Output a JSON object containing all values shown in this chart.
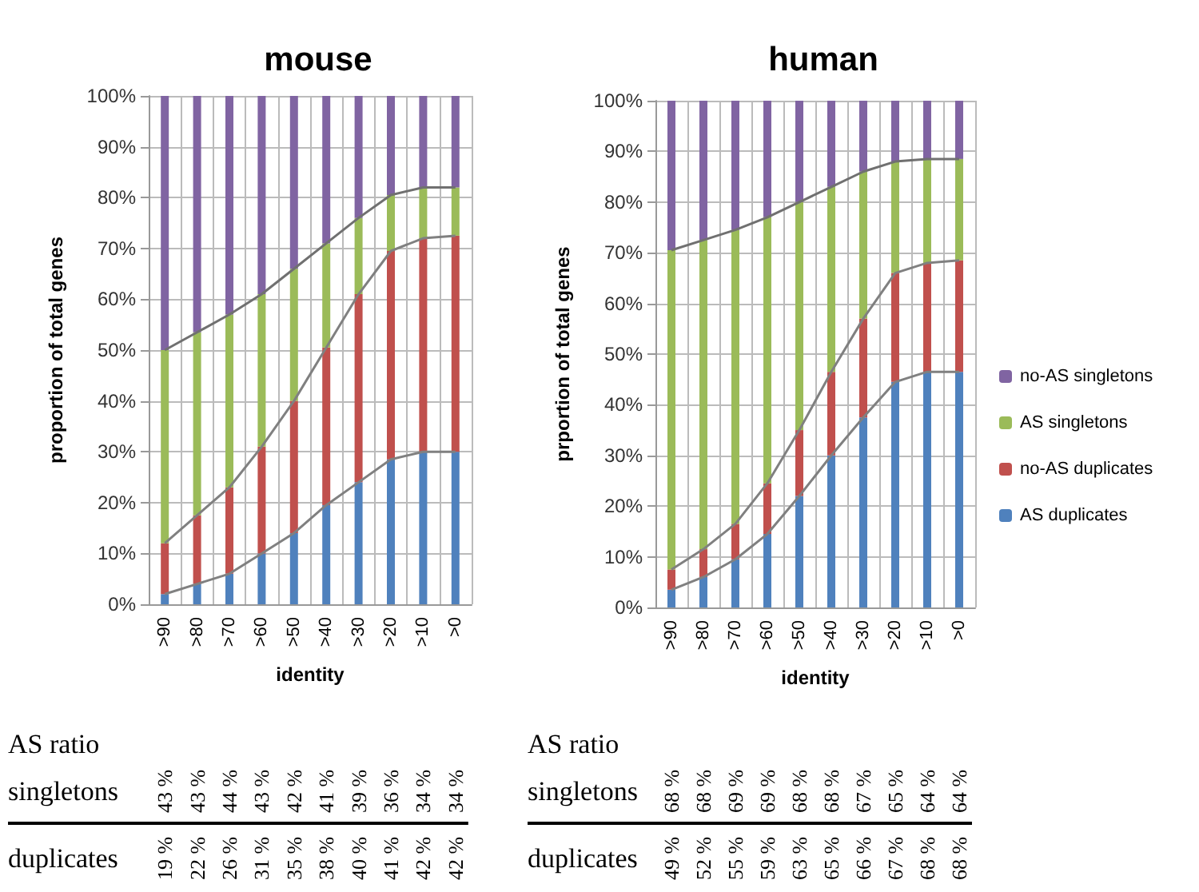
{
  "chart_data": [
    {
      "type": "bar",
      "title": "mouse",
      "xlabel": "identity",
      "ylabel": "proportion of total genes",
      "stacked": true,
      "grid": true,
      "legend": false,
      "categories": [
        ">90",
        ">80",
        ">70",
        ">60",
        ">50",
        ">40",
        ">30",
        ">20",
        ">10",
        ">0"
      ],
      "ylim": [
        0,
        100
      ],
      "yticks": [
        {
          "value": 0,
          "label": "0%"
        },
        {
          "value": 10,
          "label": "10%"
        },
        {
          "value": 20,
          "label": "20%"
        },
        {
          "value": 30,
          "label": "30%"
        },
        {
          "value": 40,
          "label": "40%"
        },
        {
          "value": 50,
          "label": "50%"
        },
        {
          "value": 60,
          "label": "60%"
        },
        {
          "value": 70,
          "label": "70%"
        },
        {
          "value": 80,
          "label": "80%"
        },
        {
          "value": 90,
          "label": "90%"
        },
        {
          "value": 100,
          "label": "100%"
        }
      ],
      "series": [
        {
          "color": "#4f81bd",
          "values": [
            2,
            4,
            6,
            10,
            14,
            19.5,
            24,
            28.5,
            30,
            30
          ]
        },
        {
          "color": "#c0504d",
          "values": [
            10,
            13.5,
            17,
            21,
            26,
            31,
            37,
            41,
            42,
            42.5
          ]
        },
        {
          "color": "#9bbb59",
          "values": [
            38,
            36,
            34,
            30,
            26,
            20.5,
            15,
            11,
            10,
            9.5
          ]
        },
        {
          "color": "#8064a2",
          "values": [
            50,
            46.5,
            43,
            39,
            34,
            29,
            24,
            19.5,
            18,
            18
          ]
        },
        {
          "type": "line",
          "color": "#808080",
          "values": [
            2,
            4,
            6,
            10,
            14,
            19.5,
            24,
            28.5,
            30,
            30
          ]
        },
        {
          "type": "line",
          "color": "#808080",
          "values": [
            12,
            17.5,
            23,
            31,
            40,
            50.5,
            61,
            69.5,
            72,
            72.5
          ]
        },
        {
          "type": "line",
          "color": "#707070",
          "values": [
            50,
            53.5,
            57,
            61,
            66,
            71,
            76,
            80.5,
            82,
            82
          ]
        }
      ],
      "annotations": [
        "AS ratio",
        "singletons",
        "43 %",
        "43 %",
        "44 %",
        "43 %",
        "42 %",
        "41 %",
        "39 %",
        "36 %",
        "34 %",
        "34 %",
        "duplicates",
        "19 %",
        "22 %",
        "26 %",
        "31 %",
        "35 %",
        "38 %",
        "40 %",
        "41 %",
        "42 %",
        "42 %"
      ]
    },
    {
      "type": "bar",
      "title": "human",
      "xlabel": "identity",
      "ylabel": "prportion of total genes",
      "stacked": true,
      "grid": true,
      "legend": "right",
      "categories": [
        ">90",
        ">80",
        ">70",
        ">60",
        ">50",
        ">40",
        ">30",
        ">20",
        ">10",
        ">0"
      ],
      "ylim": [
        0,
        100
      ],
      "yticks": [
        {
          "value": 0,
          "label": "0%"
        },
        {
          "value": 10,
          "label": "10%"
        },
        {
          "value": 20,
          "label": "20%"
        },
        {
          "value": 30,
          "label": "30%"
        },
        {
          "value": 40,
          "label": "40%"
        },
        {
          "value": 50,
          "label": "50%"
        },
        {
          "value": 60,
          "label": "60%"
        },
        {
          "value": 70,
          "label": "70%"
        },
        {
          "value": 80,
          "label": "80%"
        },
        {
          "value": 90,
          "label": "90%"
        },
        {
          "value": 100,
          "label": "100%"
        }
      ],
      "series": [
        {
          "name": "AS duplicates",
          "color": "#4f81bd",
          "values": [
            3.5,
            6,
            9.5,
            14.5,
            22,
            30,
            37.5,
            44.5,
            46.5,
            46.5
          ]
        },
        {
          "name": "no-AS duplicates",
          "color": "#c0504d",
          "values": [
            4,
            5.5,
            7,
            10,
            13,
            16.5,
            19.5,
            21.5,
            21.5,
            22
          ]
        },
        {
          "name": "AS singletons",
          "color": "#9bbb59",
          "values": [
            63,
            61,
            58,
            52.5,
            45,
            36.5,
            29,
            22,
            20.5,
            20
          ]
        },
        {
          "name": "no-AS singletons",
          "color": "#8064a2",
          "values": [
            29.5,
            27.5,
            25.5,
            23,
            20,
            17,
            14,
            12,
            11.5,
            11.5
          ]
        },
        {
          "type": "line",
          "color": "#808080",
          "values": [
            3.5,
            6,
            9.5,
            14.5,
            22,
            30,
            37.5,
            44.5,
            46.5,
            46.5
          ]
        },
        {
          "type": "line",
          "color": "#808080",
          "values": [
            7.5,
            11.5,
            16.5,
            24.5,
            35,
            46.5,
            57,
            66,
            68,
            68.5
          ]
        },
        {
          "type": "line",
          "color": "#707070",
          "values": [
            70.5,
            72.5,
            74.5,
            77,
            80,
            83,
            86,
            88,
            88.5,
            88.5
          ]
        }
      ],
      "annotations": [
        "AS ratio",
        "singletons",
        "68 %",
        "68 %",
        "69 %",
        "69 %",
        "68 %",
        "68 %",
        "67 %",
        "65 %",
        "64 %",
        "64 %",
        "duplicates",
        "49 %",
        "52 %",
        "55 %",
        "59 %",
        "63 %",
        "65 %",
        "66 %",
        "67 %",
        "68 %",
        "68 %"
      ]
    }
  ]
}
